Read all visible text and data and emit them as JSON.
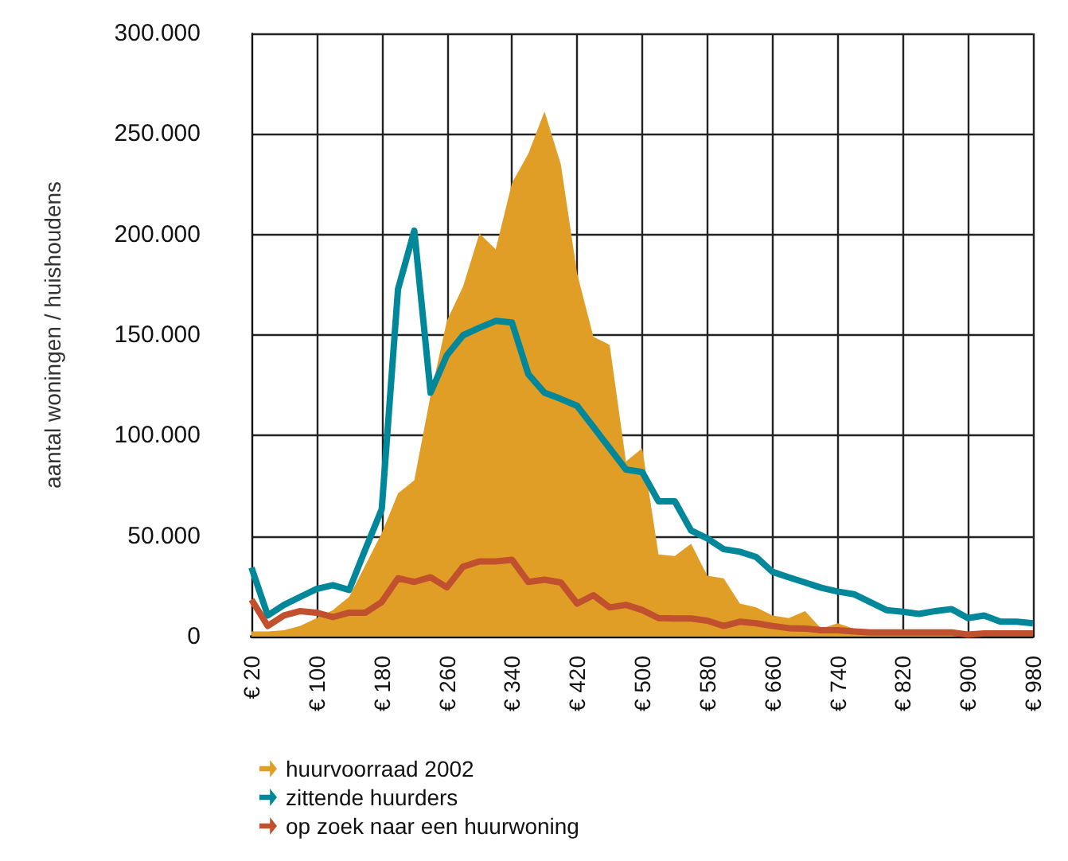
{
  "chart_data": {
    "type": "line",
    "ylabel": "aantal woningen / huishoudens",
    "categories": [
      "€ 20",
      null,
      null,
      null,
      "€ 100",
      null,
      null,
      null,
      "€ 180",
      null,
      null,
      null,
      "€ 260",
      null,
      null,
      null,
      "€ 340",
      null,
      null,
      null,
      "€ 420",
      null,
      null,
      null,
      "€ 500",
      null,
      null,
      null,
      "€ 580",
      null,
      null,
      null,
      "€ 660",
      null,
      null,
      null,
      "€ 740",
      null,
      null,
      null,
      "€ 820",
      null,
      null,
      null,
      "€ 900",
      null,
      null,
      null,
      "€ 980"
    ],
    "series": [
      {
        "name": "huurvoorraad 2002",
        "type": "area",
        "color": "#e09e27",
        "values": [
          2600,
          2600,
          3200,
          5300,
          9200,
          13200,
          19800,
          35600,
          51500,
          71200,
          77800,
          120000,
          157000,
          174200,
          200500,
          192600,
          225600,
          240100,
          261200,
          234900,
          180700,
          149100,
          145100,
          87100,
          93700,
          40900,
          40100,
          46200,
          30300,
          29000,
          16400,
          14500,
          10500,
          9200,
          12700,
          4000,
          6600,
          4000,
          2100,
          1600,
          1600,
          1300,
          1300,
          1000,
          1000,
          1000,
          800,
          800,
          800
        ]
      },
      {
        "name": "zittende huurders",
        "type": "line",
        "color": "#00879a",
        "values": [
          34300,
          10500,
          15800,
          19800,
          23700,
          25600,
          23200,
          43500,
          63300,
          172800,
          201900,
          121300,
          139900,
          149900,
          153600,
          157000,
          156200,
          130600,
          121300,
          118200,
          114800,
          104300,
          93700,
          83100,
          81800,
          67300,
          67300,
          52800,
          48800,
          43500,
          42200,
          39600,
          32200,
          29500,
          26900,
          24300,
          22400,
          21100,
          17200,
          13200,
          12400,
          11300,
          12700,
          13700,
          9200,
          10500,
          7400,
          7400,
          6600
        ]
      },
      {
        "name": "op zoek naar een huurwoning",
        "type": "line",
        "color": "#c0502e",
        "values": [
          18400,
          5300,
          10500,
          12700,
          11900,
          9700,
          11900,
          11900,
          17200,
          29000,
          27200,
          29500,
          24500,
          34800,
          37400,
          37400,
          38200,
          27200,
          28300,
          26900,
          16400,
          20600,
          14500,
          15800,
          13200,
          9200,
          9000,
          9000,
          7900,
          5300,
          7400,
          6600,
          5300,
          4200,
          4000,
          3200,
          3200,
          2600,
          2100,
          2100,
          2100,
          2100,
          2100,
          2100,
          1000,
          1600,
          1600,
          1600,
          1600
        ]
      }
    ],
    "ylim": [
      0,
      300000
    ],
    "yticks": [
      {
        "value": 0,
        "label": "0"
      },
      {
        "value": 50000,
        "label": "50.000"
      },
      {
        "value": 100000,
        "label": "100.000"
      },
      {
        "value": 150000,
        "label": "150.000"
      },
      {
        "value": 200000,
        "label": "200.000"
      },
      {
        "value": 250000,
        "label": "250.000"
      },
      {
        "value": 300000,
        "label": "300.000"
      }
    ],
    "grid": true,
    "legend": "bottom left",
    "marker": "none",
    "line_style": "solid"
  }
}
